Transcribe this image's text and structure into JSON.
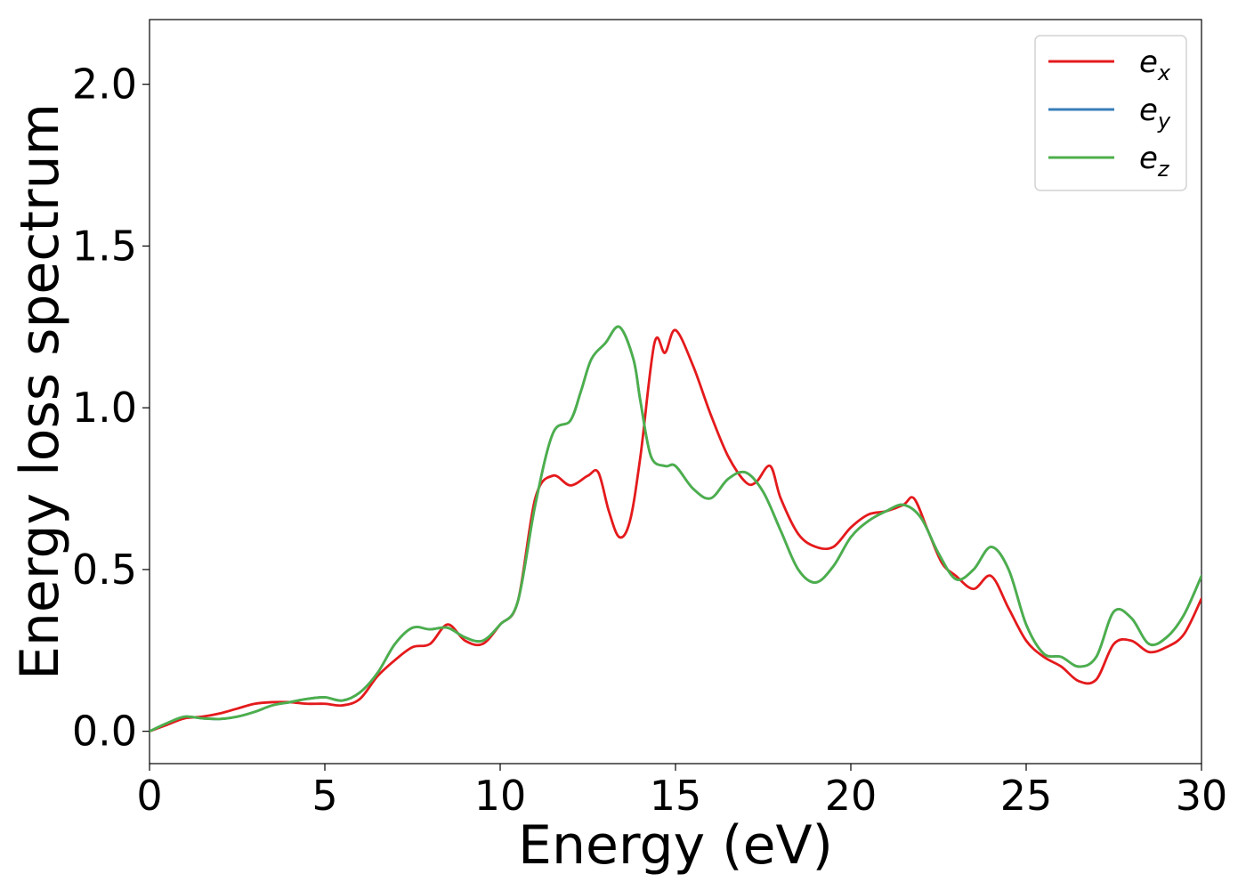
{
  "chart_data": {
    "type": "line",
    "xlabel": "Energy (eV)",
    "ylabel": "Energy loss spectrum",
    "xlim": [
      0,
      30
    ],
    "ylim": [
      -0.1,
      2.2
    ],
    "xticks": [
      0,
      5,
      10,
      15,
      20,
      25,
      30
    ],
    "xtick_labels": [
      "0",
      "5",
      "10",
      "15",
      "20",
      "25",
      "30"
    ],
    "yticks": [
      0.0,
      0.5,
      1.0,
      1.5,
      2.0
    ],
    "ytick_labels": [
      "0.0",
      "0.5",
      "1.0",
      "1.5",
      "2.0"
    ],
    "grid": false,
    "legend_position": "top-right",
    "series": [
      {
        "name": "e_x",
        "legend_base": "e",
        "legend_sub": "x",
        "color": "#e41a1c",
        "x": [
          0,
          0.5,
          1,
          1.5,
          2,
          2.5,
          3,
          3.5,
          4,
          4.5,
          5,
          5.5,
          6,
          6.5,
          7,
          7.5,
          8,
          8.5,
          9,
          9.5,
          10,
          10.5,
          11,
          11.5,
          12,
          12.5,
          12.8,
          13.1,
          13.4,
          13.7,
          14,
          14.4,
          14.7,
          15,
          15.5,
          16,
          16.5,
          17,
          17.3,
          17.7,
          18,
          18.5,
          19,
          19.5,
          20,
          20.5,
          21,
          21.5,
          21.8,
          22.2,
          22.6,
          23,
          23.5,
          24,
          24.5,
          25,
          25.5,
          26,
          26.5,
          27,
          27.5,
          28,
          28.5,
          29,
          29.5,
          30
        ],
        "y": [
          0.0,
          0.02,
          0.04,
          0.045,
          0.055,
          0.07,
          0.085,
          0.09,
          0.09,
          0.085,
          0.085,
          0.08,
          0.1,
          0.17,
          0.22,
          0.26,
          0.27,
          0.33,
          0.28,
          0.27,
          0.33,
          0.4,
          0.72,
          0.79,
          0.76,
          0.79,
          0.8,
          0.68,
          0.6,
          0.65,
          0.85,
          1.2,
          1.17,
          1.24,
          1.13,
          0.98,
          0.85,
          0.77,
          0.77,
          0.82,
          0.72,
          0.61,
          0.57,
          0.57,
          0.63,
          0.67,
          0.68,
          0.7,
          0.72,
          0.62,
          0.52,
          0.48,
          0.44,
          0.48,
          0.38,
          0.28,
          0.23,
          0.2,
          0.155,
          0.16,
          0.27,
          0.28,
          0.245,
          0.26,
          0.3,
          0.41
        ]
      },
      {
        "name": "e_y",
        "legend_base": "e",
        "legend_sub": "y",
        "color": "#377eb8",
        "x": [
          0,
          0.5,
          1,
          1.5,
          2,
          2.5,
          3,
          3.5,
          4,
          4.5,
          5,
          5.5,
          6,
          6.5,
          7,
          7.5,
          8,
          8.5,
          9,
          9.5,
          10,
          10.5,
          11,
          11.5,
          12,
          12.3,
          12.6,
          13,
          13.4,
          13.8,
          14,
          14.3,
          14.7,
          15,
          15.5,
          16,
          16.5,
          17,
          17.5,
          18,
          18.5,
          19,
          19.5,
          20,
          20.5,
          21,
          21.5,
          22,
          22.5,
          23,
          23.5,
          24,
          24.5,
          25,
          25.5,
          26,
          26.5,
          27,
          27.5,
          28,
          28.5,
          29,
          29.5,
          30
        ],
        "y": [
          0.0,
          0.025,
          0.045,
          0.04,
          0.038,
          0.045,
          0.06,
          0.08,
          0.09,
          0.1,
          0.105,
          0.095,
          0.12,
          0.18,
          0.27,
          0.32,
          0.315,
          0.32,
          0.29,
          0.28,
          0.33,
          0.4,
          0.7,
          0.92,
          0.96,
          1.05,
          1.15,
          1.2,
          1.25,
          1.15,
          1.02,
          0.85,
          0.82,
          0.82,
          0.75,
          0.72,
          0.78,
          0.8,
          0.74,
          0.62,
          0.5,
          0.46,
          0.51,
          0.6,
          0.65,
          0.68,
          0.7,
          0.66,
          0.55,
          0.47,
          0.5,
          0.57,
          0.5,
          0.33,
          0.24,
          0.23,
          0.2,
          0.23,
          0.37,
          0.35,
          0.27,
          0.29,
          0.36,
          0.48
        ]
      },
      {
        "name": "e_z",
        "legend_base": "e",
        "legend_sub": "z",
        "color": "#4daf4a",
        "x": [
          0,
          0.5,
          1,
          1.5,
          2,
          2.5,
          3,
          3.5,
          4,
          4.5,
          5,
          5.5,
          6,
          6.5,
          7,
          7.5,
          8,
          8.5,
          9,
          9.5,
          10,
          10.5,
          11,
          11.5,
          12,
          12.3,
          12.6,
          13,
          13.4,
          13.8,
          14,
          14.3,
          14.7,
          15,
          15.5,
          16,
          16.5,
          17,
          17.5,
          18,
          18.5,
          19,
          19.5,
          20,
          20.5,
          21,
          21.5,
          22,
          22.5,
          23,
          23.5,
          24,
          24.5,
          25,
          25.5,
          26,
          26.5,
          27,
          27.5,
          28,
          28.5,
          29,
          29.5,
          30
        ],
        "y": [
          0.0,
          0.025,
          0.045,
          0.04,
          0.038,
          0.045,
          0.06,
          0.08,
          0.09,
          0.1,
          0.105,
          0.095,
          0.12,
          0.18,
          0.27,
          0.32,
          0.315,
          0.32,
          0.29,
          0.28,
          0.33,
          0.4,
          0.7,
          0.92,
          0.96,
          1.05,
          1.15,
          1.2,
          1.25,
          1.15,
          1.02,
          0.85,
          0.82,
          0.82,
          0.75,
          0.72,
          0.78,
          0.8,
          0.74,
          0.62,
          0.5,
          0.46,
          0.51,
          0.6,
          0.65,
          0.68,
          0.7,
          0.66,
          0.55,
          0.47,
          0.5,
          0.57,
          0.5,
          0.33,
          0.24,
          0.23,
          0.2,
          0.23,
          0.37,
          0.35,
          0.27,
          0.29,
          0.36,
          0.48
        ]
      }
    ]
  }
}
